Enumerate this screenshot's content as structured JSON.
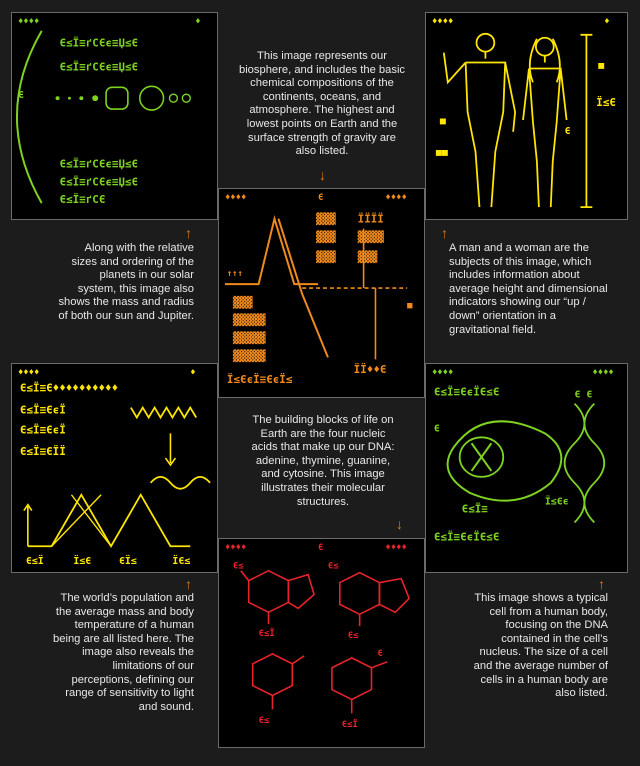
{
  "captions": {
    "biosphere": "This image represents our biosphere, and includes the basic chemical compositions of the continents, oceans, and atmosphere. The highest and lowest points on Earth and the surface strength of gravity are also listed.",
    "planets": "Along with the relative sizes and ordering of the planets in our solar system, this image also shows the mass and radius of both our sun and Jupiter.",
    "humans": "A man and a woman are the subjects of this image, which includes information about average height and dimensional indicators showing our “up / down” orientation in a gravitational field.",
    "nucleic": "The building blocks of life on Earth are the four nucleic acids that make up our DNA: adenine, thymine, guanine, and cytosine. This image illustrates their molecular structures.",
    "population": "The world’s population and the average mass and body temperature of a human being are all listed here. The image also reveals the limitations of our perceptions, defining our range of sensitivity to light and sound.",
    "cell": "This image shows a typical cell from a human body, focusing on the DNA contained in the cell’s nucleus. The size of a cell and the average number of cells in a human body are also listed."
  },
  "arrows": {
    "down": "↓",
    "up": "↑"
  },
  "colors": {
    "planets": "#7ed321",
    "humans": "#ffe600",
    "biosphere": "#f08a1c",
    "population": "#ffe600",
    "nucleic": "#e8232a",
    "cell": "#7ed321"
  }
}
